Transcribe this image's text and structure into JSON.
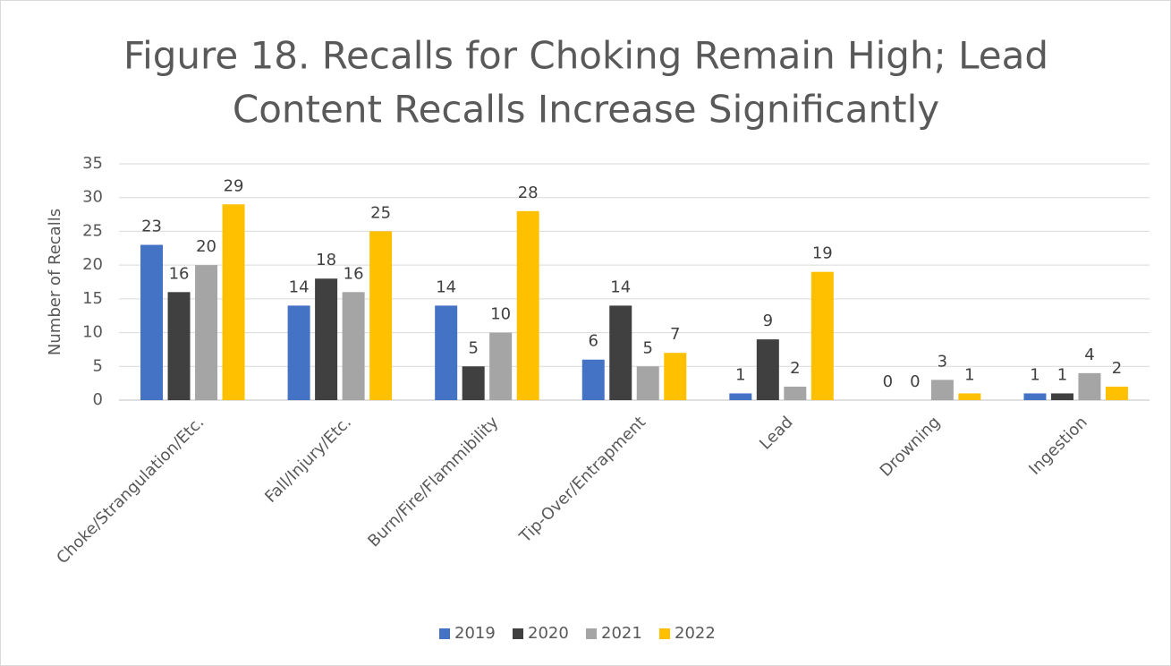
{
  "chart_data": {
    "type": "bar",
    "title": [
      "Figure 18. Recalls for Choking Remain High; Lead",
      "Content Recalls Increase Significantly"
    ],
    "ylabel": "Number of Recalls",
    "categories": [
      "Choke/Strangulation/Etc.",
      "Fall/Injury/Etc.",
      "Burn/Fire/Flammibility",
      "Tip-Over/Entrapment",
      "Lead",
      "Drowning",
      "Ingestion"
    ],
    "series": [
      {
        "name": "2019",
        "color": "#4472c4",
        "values": [
          23,
          14,
          14,
          6,
          1,
          0,
          1
        ]
      },
      {
        "name": "2020",
        "color": "#404040",
        "values": [
          16,
          18,
          5,
          14,
          9,
          0,
          1
        ]
      },
      {
        "name": "2021",
        "color": "#a5a5a5",
        "values": [
          20,
          16,
          10,
          5,
          2,
          3,
          4
        ]
      },
      {
        "name": "2022",
        "color": "#ffc000",
        "values": [
          29,
          25,
          28,
          7,
          19,
          1,
          2
        ]
      }
    ],
    "ylim": [
      0,
      35
    ],
    "yticks": [
      0,
      5,
      10,
      15,
      20,
      25,
      30,
      35
    ],
    "grid": true,
    "legend": "bottom"
  }
}
